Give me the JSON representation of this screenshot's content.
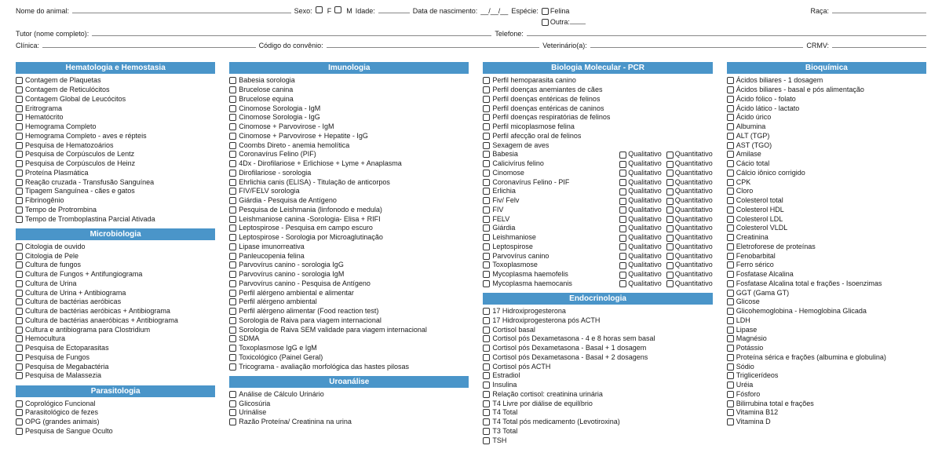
{
  "colors": {
    "header_bg": "#4a95c9",
    "header_fg": "#ffffff",
    "text": "#1a1a1a",
    "rule": "#888888"
  },
  "header": {
    "animal_name_label": "Nome do animal:",
    "sex_label": "Sexo:",
    "sex_f": "F",
    "sex_m": "M",
    "age_label": "Idade:",
    "dob_label": "Data de nascimento:",
    "dob_value": "__/__/__",
    "species_label": "Espécie:",
    "species_felina": "Felina",
    "species_outra": "Outra:",
    "breed_label": "Raça:",
    "tutor_label": "Tutor (nome completo):",
    "phone_label": "Telefone:",
    "clinic_label": "Clínica:",
    "convenio_label": "Código do convênio:",
    "vet_label": "Veterinário(a):",
    "crmv_label": "CRMV:"
  },
  "col1": {
    "sec1_title": "Hematologia e Hemostasia",
    "sec1_items": [
      "Contagem de Plaquetas",
      "Contagem de Reticulócitos",
      "Contagem Global de Leucócitos",
      "Eritrograma",
      "Hematócrito",
      "Hemograma Completo",
      "Hemograma Completo - aves e répteis",
      "Pesquisa de Hematozoários",
      "Pesquisa de Corpúsculos de Lentz",
      "Pesquisa de Corpúsculos de Heinz",
      "Proteína Plasmática",
      "Reação cruzada - Transfusão Sanguínea",
      "Tipagem Sanguínea - cães e gatos",
      "Fibrinogênio",
      "Tempo de Protrombina",
      "Tempo de Tromboplastina Parcial Ativada"
    ],
    "sec2_title": "Microbiologia",
    "sec2_items": [
      "Citologia de ouvido",
      "Citologia de Pele",
      "Cultura de fungos",
      "Cultura de Fungos + Antifungiograma",
      "Cultura de Urina",
      "Cultura de Urina + Antibiograma",
      "Cultura de bactérias aeróbicas",
      "Cultura de bactérias aeróbicas + Antibiograma",
      "Cultura de bactérias anaeróbicas + Antibiograma",
      "Cultura e antibiograma para Clostridium",
      "Hemocultura",
      "Pesquisa de Ectoparasitas",
      "Pesquisa de Fungos",
      "Pesquisa de Megabactéria",
      "Pesquisa de Malassezia"
    ],
    "sec3_title": "Parasitologia",
    "sec3_items": [
      "Coprológico Funcional",
      "Parasitológico de fezes",
      "OPG (grandes animais)",
      "Pesquisa de Sangue Oculto"
    ]
  },
  "col2": {
    "sec1_title": "Imunologia",
    "sec1_items": [
      "Babesia sorologia",
      "Brucelose canina",
      "Brucelose equina",
      "Cinomose Sorologia - IgM",
      "Cinomose Sorologia - IgG",
      "Cinomose + Parvovirose - IgM",
      "Cinomose + Parvovirose + Hepatite - IgG",
      "Coombs Direto - anemia hemolítica",
      "Coronavírus Felino (PIF)",
      "4Dx - Dirofilariose + Erlichiose + Lyme + Anaplasma",
      "Dirofilariose - sorologia",
      "Ehrlichia canis (ELISA) - Titulação de anticorpos",
      "FIV/FELV sorologia",
      "Giárdia - Pesquisa de Antígeno",
      "Pesquisa de Leishmania (linfonodo e medula)",
      "Leishmaniose canina -Sorologia- Elisa + RIFI",
      "Leptospirose - Pesquisa em campo escuro",
      "Leptospirose - Sorologia por Microaglutinação",
      "Lipase imunorreativa",
      "Panleucopenia felina",
      "Parvovírus canino - sorologia IgG",
      "Parvovírus canino - sorologia IgM",
      "Parvovírus canino - Pesquisa de Antígeno",
      "Perfil alérgeno ambiental e alimentar",
      "Perfil alérgeno ambiental",
      "Perfil alérgeno alimentar (Food reaction test)",
      "Sorologia de Raiva para viagem internacional",
      "Sorologia de Raiva SEM validade para viagem internacional",
      "SDMA",
      "Toxoplasmose IgG e IgM",
      "Toxicológico (Painel Geral)",
      "Tricograma - avaliação morfológica das hastes pilosas"
    ],
    "sec2_title": "Uroanálise",
    "sec2_items": [
      "Análise de Cálculo Urinário",
      "Glicosúria",
      "Urinálise",
      "Razão Proteína/ Creatinina na urina"
    ]
  },
  "col3": {
    "sec1_title": "Biologia Molecular - PCR",
    "sec1_simple": [
      "Perfil hemoparasita canino",
      "Perfil doenças anemiantes de cães",
      "Perfil doenças entéricas de felinos",
      "Perfil doenças entéricas de caninos",
      "Perfil doenças respiratórias de felinos",
      "Perfil micoplasmose felina",
      "Perfil afecção oral de felinos",
      "Sexagem de aves"
    ],
    "dual_qual": "Qualitativo",
    "dual_quant": "Quantitativo",
    "sec1_dual": [
      "Babesia",
      "Calicivírus felino",
      "Cinomose",
      "Coronavírus Felino - PIF",
      "Erlichia",
      "Fiv/ Felv",
      "FIV",
      "FELV",
      "Giárdia",
      "Leishmaniose",
      "Leptospirose",
      "Parvovírus canino",
      "Toxoplasmose",
      "Mycoplasma haemofelis",
      "Mycoplasma haemocanis"
    ],
    "sec2_title": "Endocrinologia",
    "sec2_items": [
      "17 Hidroxiprogesterona",
      "17 Hidroxiprogesterona pós ACTH",
      "Cortisol basal",
      "Cortisol pós Dexametasona - 4 e 8 horas sem basal",
      "Cortisol pós Dexametasona - Basal + 1 dosagem",
      "Cortisol pós Dexametasona - Basal + 2 dosagens",
      "Cortisol pós ACTH",
      "Estradiol",
      "Insulina",
      "Relação cortisol: creatinina urinária",
      "T4 Livre por diálise de equilíbrio",
      "T4 Total",
      "T4 Total pós medicamento (Levotiroxina)",
      "T3 Total",
      "TSH"
    ]
  },
  "col4": {
    "sec1_title": "Bioquímica",
    "sec1_items": [
      "Ácidos biliares - 1 dosagem",
      "Ácidos biliares - basal e pós alimentação",
      "Ácido fólico - folato",
      "Ácido lático - lactato",
      "Ácido úrico",
      "Albumina",
      "ALT (TGP)",
      "AST (TGO)",
      "Amilase",
      "Cácio total",
      "Cálcio iônico corrigido",
      "CPK",
      "Cloro",
      "Colesterol total",
      "Colesterol HDL",
      "Colesterol LDL",
      "Colesterol VLDL",
      "Creatinina",
      "Eletroforese de proteínas",
      "Fenobarbital",
      "Ferro sérico",
      "Fosfatase Alcalina",
      "Fosfatase Alcalina total e frações - Isoenzimas",
      "GGT (Gama GT)",
      "Glicose",
      "Glicohemoglobina - Hemoglobina Glicada",
      "LDH",
      "Lipase",
      "Magnésio",
      "Potássio",
      "Proteína sérica e frações (albumina e globulina)",
      "Sódio",
      "Triglicerídeos",
      "Uréia",
      "Fósforo",
      "Bilirrubina total e frações",
      "Vitamina B12",
      "Vitamina D"
    ]
  }
}
